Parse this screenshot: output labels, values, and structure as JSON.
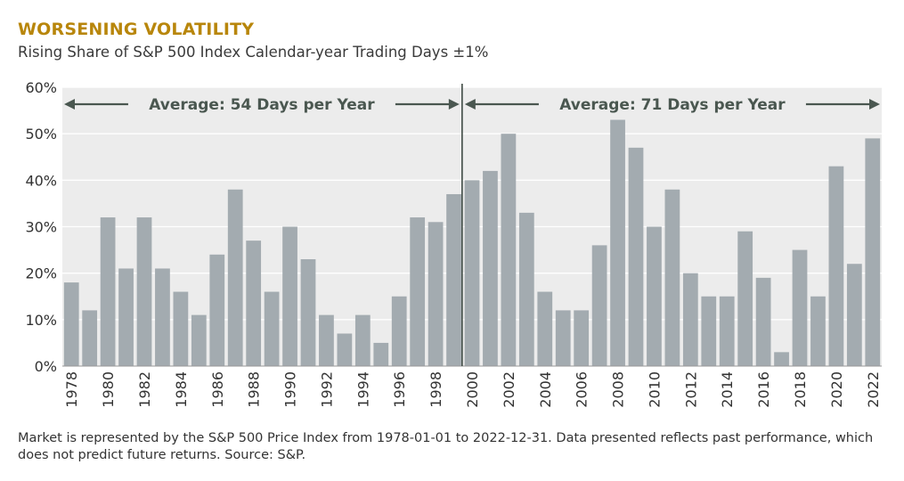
{
  "header": {
    "title": "WORSENING VOLATILITY",
    "subtitle": "Rising Share of S&P 500 Index Calendar-year Trading Days ±1%"
  },
  "footnote": "Market is represented by the S&P 500 Price Index from 1978-01-01 to 2022-12-31. Data presented reflects past performance, which does not predict future returns. Source: S&P.",
  "colors": {
    "bar": "#a3abb0",
    "plot_background": "#ececec",
    "grid": "#ffffff",
    "annotation": "#4a5750",
    "divider": "#3f4a44",
    "title": "#b8860b"
  },
  "chart_data": {
    "type": "bar",
    "title": "WORSENING VOLATILITY",
    "subtitle": "Rising Share of S&P 500 Index Calendar-year Trading Days ±1%",
    "categories": [
      1978,
      1979,
      1980,
      1981,
      1982,
      1983,
      1984,
      1985,
      1986,
      1987,
      1988,
      1989,
      1990,
      1991,
      1992,
      1993,
      1994,
      1995,
      1996,
      1997,
      1998,
      1999,
      2000,
      2001,
      2002,
      2003,
      2004,
      2005,
      2006,
      2007,
      2008,
      2009,
      2010,
      2011,
      2012,
      2013,
      2014,
      2015,
      2016,
      2017,
      2018,
      2019,
      2020,
      2021,
      2022
    ],
    "values": [
      18,
      12,
      32,
      21,
      32,
      21,
      16,
      11,
      24,
      38,
      27,
      16,
      30,
      23,
      11,
      7,
      11,
      5,
      15,
      32,
      31,
      37,
      40,
      42,
      50,
      33,
      16,
      12,
      12,
      26,
      53,
      47,
      30,
      38,
      20,
      15,
      15,
      29,
      19,
      3,
      25,
      15,
      43,
      22,
      49
    ],
    "value_unit": "percent",
    "ylim": [
      0,
      60
    ],
    "yticks": [
      0,
      10,
      20,
      30,
      40,
      50,
      60
    ],
    "ytick_labels": [
      "0%",
      "10%",
      "20%",
      "30%",
      "40%",
      "50%",
      "60%"
    ],
    "xtick_labels": [
      "1978",
      "1980",
      "1982",
      "1984",
      "1986",
      "1988",
      "1990",
      "1992",
      "1994",
      "1996",
      "1998",
      "2000",
      "2002",
      "2004",
      "2006",
      "2008",
      "2010",
      "2012",
      "2014",
      "2016",
      "2018",
      "2020",
      "2022"
    ],
    "grid": true,
    "divider_between": [
      1999,
      2000
    ],
    "annotations": [
      {
        "text": "Average: 54 Days per Year",
        "from": 1978,
        "to": 1999
      },
      {
        "text": "Average: 71 Days per Year",
        "from": 2000,
        "to": 2022
      }
    ]
  }
}
